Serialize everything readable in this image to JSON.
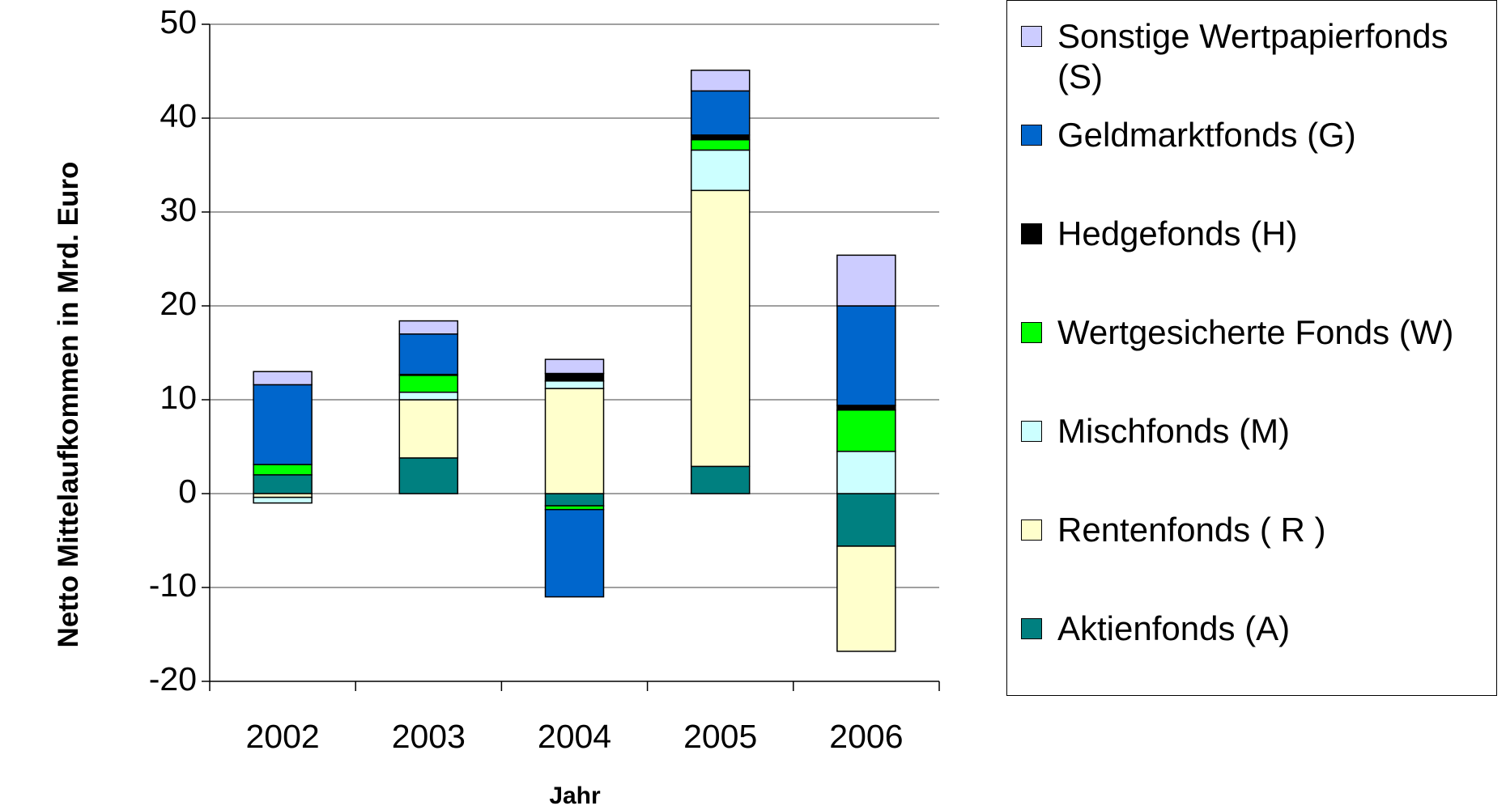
{
  "chart_data": {
    "type": "stacked_bar",
    "x_label": "Jahr",
    "y_label": "Netto Mittelaufkommen in Mrd. Euro",
    "categories": [
      "2002",
      "2003",
      "2004",
      "2005",
      "2006"
    ],
    "series": [
      {
        "name": "Aktienfonds (A)",
        "color": "#008080",
        "values": [
          2.0,
          3.8,
          -1.3,
          2.9,
          -5.6
        ]
      },
      {
        "name": "Rentenfonds ( R )",
        "color": "#ffffcc",
        "values": [
          -0.4,
          6.2,
          11.2,
          29.4,
          -11.2
        ]
      },
      {
        "name": "Mischfonds (M)",
        "color": "#ccffff",
        "values": [
          -0.6,
          0.8,
          0.8,
          4.3,
          4.5
        ]
      },
      {
        "name": "Wertgesicherte Fonds (W)",
        "color": "#00ff00",
        "values": [
          1.1,
          1.8,
          -0.4,
          1.1,
          4.4
        ]
      },
      {
        "name": "Hedgefonds (H)",
        "color": "#000000",
        "values": [
          0,
          0.1,
          0.8,
          0.5,
          0.5
        ]
      },
      {
        "name": "Geldmarktfonds (G)",
        "color": "#0066cc",
        "values": [
          8.5,
          4.3,
          -9.3,
          4.7,
          10.6
        ]
      },
      {
        "name": "Sonstige Wertpapierfonds (S)",
        "color": "#ccccff",
        "values": [
          1.4,
          1.4,
          1.5,
          2.2,
          5.4
        ]
      }
    ],
    "ylim": [
      -20,
      50
    ],
    "yticks": [
      -20,
      -10,
      0,
      10,
      20,
      30,
      40,
      50
    ],
    "grid": true,
    "legend": "right"
  }
}
